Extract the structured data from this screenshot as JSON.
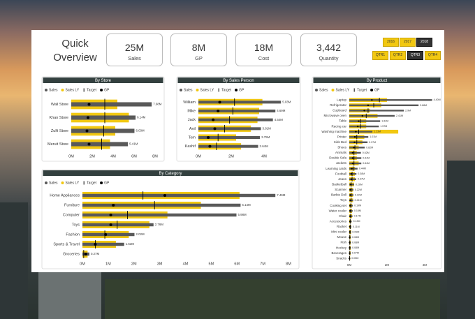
{
  "header": {
    "title": "Quick Overview"
  },
  "kpis": [
    {
      "value": "25M",
      "label": "Sales"
    },
    {
      "value": "8M",
      "label": "GP"
    },
    {
      "value": "18M",
      "label": "Cost"
    },
    {
      "value": "3,442",
      "label": "Quantity"
    }
  ],
  "slicers": {
    "years": [
      {
        "label": "2016",
        "selected": false
      },
      {
        "label": "2017",
        "selected": false
      },
      {
        "label": "2018",
        "selected": true
      }
    ],
    "quarters": [
      {
        "label": "QTR1",
        "selected": false
      },
      {
        "label": "QTR2",
        "selected": false
      },
      {
        "label": "QTR3",
        "selected": true
      },
      {
        "label": "QTR4",
        "selected": false
      }
    ]
  },
  "chart_data": [
    {
      "type": "bullet",
      "title": "By Store",
      "categories": [
        "Wall Store",
        "Khan Store",
        "Zulfi Store",
        "Meruit Store"
      ],
      "series": [
        {
          "name": "Sales",
          "color": "#595959",
          "style": "bar",
          "values": [
            7.68,
            6.14,
            6.03,
            5.41
          ],
          "value_labels": [
            "7.68M",
            "6.14M",
            "6.03M",
            "5.41M"
          ]
        },
        {
          "name": "Sales LY",
          "color": "#f2c811",
          "style": "wide-bar",
          "values": [
            4.4,
            5.5,
            4.2,
            3.7
          ]
        },
        {
          "name": "Target",
          "color": "#000000",
          "style": "tick",
          "values": [
            3.2,
            3.2,
            3.1,
            2.9
          ]
        },
        {
          "name": "GP",
          "color": "#000000",
          "style": "dot",
          "values": [
            1.7,
            1.6,
            1.5,
            1.7
          ]
        }
      ],
      "xlim": [
        0,
        8
      ],
      "xticks": [
        {
          "value": 0,
          "label": "0M"
        },
        {
          "value": 2,
          "label": "2M"
        },
        {
          "value": 4,
          "label": "4M"
        },
        {
          "value": 6,
          "label": "6M"
        },
        {
          "value": 8,
          "label": "8M"
        }
      ]
    },
    {
      "type": "bullet",
      "title": "By Sales Person",
      "categories": [
        "William",
        "Mike",
        "Jack",
        "Anil",
        "Tom",
        "Kashif"
      ],
      "series": [
        {
          "name": "Sales",
          "color": "#595959",
          "style": "bar",
          "values": [
            5.03,
            4.69,
            4.54,
            3.81,
            3.75,
            3.64
          ],
          "value_labels": [
            "5.03M",
            "4.69M",
            "4.54M",
            "3.81M",
            "3.75M",
            "3.64M"
          ]
        },
        {
          "name": "Sales LY",
          "color": "#f2c811",
          "style": "wide-bar",
          "values": [
            3.9,
            3.7,
            3.6,
            3.2,
            2.3,
            2.6
          ]
        },
        {
          "name": "Target",
          "color": "#000000",
          "style": "tick",
          "values": [
            2.2,
            2.1,
            1.9,
            1.6,
            1.2,
            1.1
          ]
        },
        {
          "name": "GP",
          "color": "#000000",
          "style": "dot",
          "values": [
            1.3,
            1.2,
            0.9,
            1.0,
            0.6,
            0.7
          ]
        }
      ],
      "xlim": [
        0,
        5
      ],
      "xticks": [
        {
          "value": 0,
          "label": "0M"
        },
        {
          "value": 2,
          "label": "2M"
        },
        {
          "value": 4,
          "label": "4M"
        }
      ]
    },
    {
      "type": "bullet",
      "title": "By Category",
      "categories": [
        "Home Appliances",
        "Furniture",
        "Computer",
        "Toys",
        "Fashion",
        "Sports & Travel",
        "Groceries"
      ],
      "series": [
        {
          "name": "Sales",
          "color": "#595959",
          "style": "bar",
          "values": [
            7.49,
            6.14,
            5.98,
            2.76,
            2.02,
            1.62,
            0.27
          ],
          "value_labels": [
            "7.49M",
            "6.14M",
            "5.98M",
            "2.76M",
            "2.02M",
            "1.62M",
            "0.27M"
          ]
        },
        {
          "name": "Sales LY",
          "color": "#f2c811",
          "style": "wide-bar",
          "values": [
            6.1,
            4.6,
            3.3,
            2.6,
            1.8,
            1.3,
            0.2
          ]
        },
        {
          "name": "Target",
          "color": "#000000",
          "style": "tick",
          "values": [
            2.35,
            2.8,
            1.75,
            1.35,
            0.87,
            0.5,
            0.05
          ]
        },
        {
          "name": "GP",
          "color": "#000000",
          "style": "dot",
          "values": [
            3.2,
            1.2,
            1.1,
            1.1,
            0.9,
            0.5,
            0.13
          ]
        }
      ],
      "xlim": [
        0,
        8
      ],
      "xticks": [
        {
          "value": 0,
          "label": "0M"
        },
        {
          "value": 1,
          "label": "1M"
        },
        {
          "value": 2,
          "label": "2M"
        },
        {
          "value": 3,
          "label": "3M"
        },
        {
          "value": 4,
          "label": "4M"
        },
        {
          "value": 5,
          "label": "5M"
        },
        {
          "value": 6,
          "label": "6M"
        },
        {
          "value": 7,
          "label": "7M"
        },
        {
          "value": 8,
          "label": "8M"
        }
      ]
    },
    {
      "type": "bullet",
      "title": "By Product",
      "categories": [
        "Laptop",
        "Refrigerator",
        "Cupboard",
        "Microwave oven",
        "Table",
        "Racing car",
        "Washing machine",
        "Printer",
        "Kids Bed",
        "Shoes",
        "Animals",
        "Double Sofa",
        "Jackets",
        "Learning cards",
        "Football",
        "Jeans",
        "Basketball",
        "Scanner",
        "Barbie Doll",
        "Toys",
        "Cooking set",
        "Water cooler",
        "Chair",
        "Accessories",
        "Racket",
        "Mini cooler",
        "Mouse",
        "Fish",
        "Hockey",
        "Beverages",
        "Snacks"
      ],
      "series": [
        {
          "name": "Sales",
          "color": "#595959",
          "style": "bar",
          "values": [
            4.4,
            3.68,
            2.9,
            2.41,
            1.64,
            1.57,
            1.23,
            1.01,
            0.97,
            0.82,
            0.62,
            0.64,
            0.64,
            0.44,
            0.38,
            0.37,
            0.26,
            0.22,
            0.22,
            0.21,
            0.19,
            0.18,
            0.17,
            0.13,
            0.11,
            0.09,
            0.08,
            0.08,
            0.08,
            0.07,
            0.05
          ],
          "value_labels": [
            "4.40M",
            "3.68M",
            "2.9M",
            "2.41M",
            "1.64M",
            "1.57M",
            "1.23M",
            "1.01M",
            "0.97M",
            "0.82M",
            "0.62M",
            "0.64M",
            "0.64M",
            "0.44M",
            "0.38M",
            "0.37M",
            "0.26M",
            "0.22M",
            "0.22M",
            "0.21M",
            "0.19M",
            "0.18M",
            "0.17M",
            "0.13M",
            "0.11M",
            "0.09M",
            "0.08M",
            "0.08M",
            "0.08M",
            "0.07M",
            "0.05M"
          ]
        },
        {
          "name": "Sales LY",
          "color": "#f2c811",
          "style": "wide-bar",
          "values": [
            2.0,
            1.7,
            1.1,
            1.5,
            0.9,
            0.9,
            2.6,
            0.8,
            0.7,
            0.5,
            0.4,
            0.4,
            0.5,
            0.3,
            0.3,
            0.3,
            0.25,
            0.2,
            0.2,
            0.2,
            0.15,
            0.15,
            0.15,
            0.1,
            0.1,
            0.1,
            0.08,
            0.08,
            0.08,
            0.07,
            0.05
          ]
        },
        {
          "name": "Target",
          "color": "#000000",
          "style": "tick",
          "values": [
            1.6,
            1.3,
            1.0,
            0.9,
            0.6,
            0.6,
            0.5,
            0.4,
            0.4,
            0.3,
            0.25,
            0.25,
            0.25,
            0.2,
            0.15,
            0.15,
            0.1,
            0.1,
            0.1,
            0.1,
            0.08,
            0.08,
            0.07,
            0.05,
            0.05,
            0.04,
            0.03,
            0.03,
            0.03,
            0.03,
            0.02
          ]
        },
        {
          "name": "GP",
          "color": "#000000",
          "style": "dot",
          "values": [
            1.2,
            1.0,
            0.8,
            0.7,
            0.5,
            0.45,
            0.35,
            0.3,
            0.28,
            0.24,
            0.18,
            0.18,
            0.18,
            0.13,
            0.11,
            0.11,
            0.08,
            0.06,
            0.06,
            0.06,
            0.05,
            0.05,
            0.05,
            0.04,
            0.03,
            0.03,
            0.02,
            0.02,
            0.02,
            0.02,
            0.01
          ]
        }
      ],
      "xlim": [
        0,
        4.6
      ],
      "xticks": [
        {
          "value": 0,
          "label": "0M"
        },
        {
          "value": 2,
          "label": "2M"
        },
        {
          "value": 4,
          "label": "4M"
        }
      ]
    }
  ]
}
